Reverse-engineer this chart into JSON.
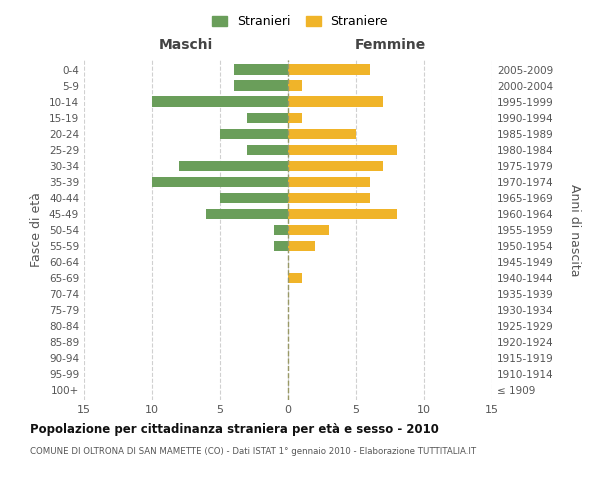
{
  "age_groups": [
    "100+",
    "95-99",
    "90-94",
    "85-89",
    "80-84",
    "75-79",
    "70-74",
    "65-69",
    "60-64",
    "55-59",
    "50-54",
    "45-49",
    "40-44",
    "35-39",
    "30-34",
    "25-29",
    "20-24",
    "15-19",
    "10-14",
    "5-9",
    "0-4"
  ],
  "birth_years": [
    "≤ 1909",
    "1910-1914",
    "1915-1919",
    "1920-1924",
    "1925-1929",
    "1930-1934",
    "1935-1939",
    "1940-1944",
    "1945-1949",
    "1950-1954",
    "1955-1959",
    "1960-1964",
    "1965-1969",
    "1970-1974",
    "1975-1979",
    "1980-1984",
    "1985-1989",
    "1990-1994",
    "1995-1999",
    "2000-2004",
    "2005-2009"
  ],
  "maschi": [
    0,
    0,
    0,
    0,
    0,
    0,
    0,
    0,
    0,
    1,
    1,
    6,
    5,
    10,
    8,
    3,
    5,
    3,
    10,
    4,
    4
  ],
  "femmine": [
    0,
    0,
    0,
    0,
    0,
    0,
    0,
    1,
    0,
    2,
    3,
    8,
    6,
    6,
    7,
    8,
    5,
    1,
    7,
    1,
    6
  ],
  "color_maschi": "#6a9e5a",
  "color_femmine": "#f0b429",
  "title": "Popolazione per cittadinanza straniera per età e sesso - 2010",
  "subtitle": "COMUNE DI OLTRONA DI SAN MAMETTE (CO) - Dati ISTAT 1° gennaio 2010 - Elaborazione TUTTITALIA.IT",
  "label_maschi": "Maschi",
  "label_femmine": "Femmine",
  "ylabel_left": "Fasce di età",
  "ylabel_right": "Anni di nascita",
  "xlim": 15,
  "legend_stranieri": "Stranieri",
  "legend_straniere": "Straniere",
  "bg_color": "#ffffff",
  "grid_color": "#d0d0d0",
  "zero_line_color": "#999966"
}
